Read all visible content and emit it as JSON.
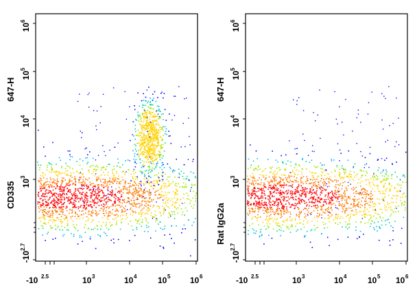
{
  "chart_data": [
    {
      "type": "scatter",
      "subtype": "flow-cytometry-density-plot",
      "ylabel": "CD335 647-H",
      "ylabel_parts": [
        "CD335",
        "647-H"
      ],
      "x_axis": {
        "scale": "biexponential",
        "range": [
          "-10^2.5",
          "10^6"
        ],
        "ticks": [
          {
            "base": "-10",
            "exp": "2.5"
          },
          {
            "base": "10",
            "exp": "3"
          },
          {
            "base": "10",
            "exp": "4"
          },
          {
            "base": "10",
            "exp": "5"
          },
          {
            "base": "10",
            "exp": "6"
          }
        ]
      },
      "y_axis": {
        "scale": "biexponential",
        "range": [
          "-10^2.7",
          "10^6"
        ],
        "ticks": [
          {
            "base": "-10",
            "exp": "2.7"
          },
          {
            "base": "10",
            "exp": "3"
          },
          {
            "base": "10",
            "exp": "4"
          },
          {
            "base": "10",
            "exp": "5"
          },
          {
            "base": "10",
            "exp": "6"
          }
        ]
      },
      "grid": false,
      "populations": [
        {
          "center_log10": [
            2.55,
            2.55
          ],
          "spread_log10": [
            1.7,
            0.9
          ],
          "density": "high"
        },
        {
          "center_log10": [
            4.45,
            3.7
          ],
          "spread_log10": [
            0.25,
            0.6
          ],
          "density": "medium"
        }
      ]
    },
    {
      "type": "scatter",
      "subtype": "flow-cytometry-density-plot",
      "ylabel": "Rat IgG2a 647-H",
      "ylabel_parts": [
        "Rat IgG2a",
        "647-H"
      ],
      "x_axis": {
        "scale": "biexponential",
        "range": [
          "-10^2.5",
          "10^6"
        ],
        "ticks": [
          {
            "base": "-10",
            "exp": "2.5"
          },
          {
            "base": "10",
            "exp": "3"
          },
          {
            "base": "10",
            "exp": "4"
          },
          {
            "base": "10",
            "exp": "5"
          },
          {
            "base": "10",
            "exp": "6"
          }
        ]
      },
      "y_axis": {
        "scale": "biexponential",
        "range": [
          "-10^2.7",
          "10^6"
        ],
        "ticks": [
          {
            "base": "-10",
            "exp": "2.7"
          },
          {
            "base": "10",
            "exp": "3"
          },
          {
            "base": "10",
            "exp": "4"
          },
          {
            "base": "10",
            "exp": "5"
          },
          {
            "base": "10",
            "exp": "6"
          }
        ]
      },
      "grid": false,
      "populations": [
        {
          "center_log10": [
            2.6,
            2.55
          ],
          "spread_log10": [
            1.8,
            0.9
          ],
          "density": "high"
        }
      ]
    }
  ],
  "colors": {
    "density_scale": [
      "#0000ff",
      "#00b4ff",
      "#00d2a0",
      "#a0e600",
      "#ffd200",
      "#ff7800",
      "#ff0000"
    ]
  }
}
